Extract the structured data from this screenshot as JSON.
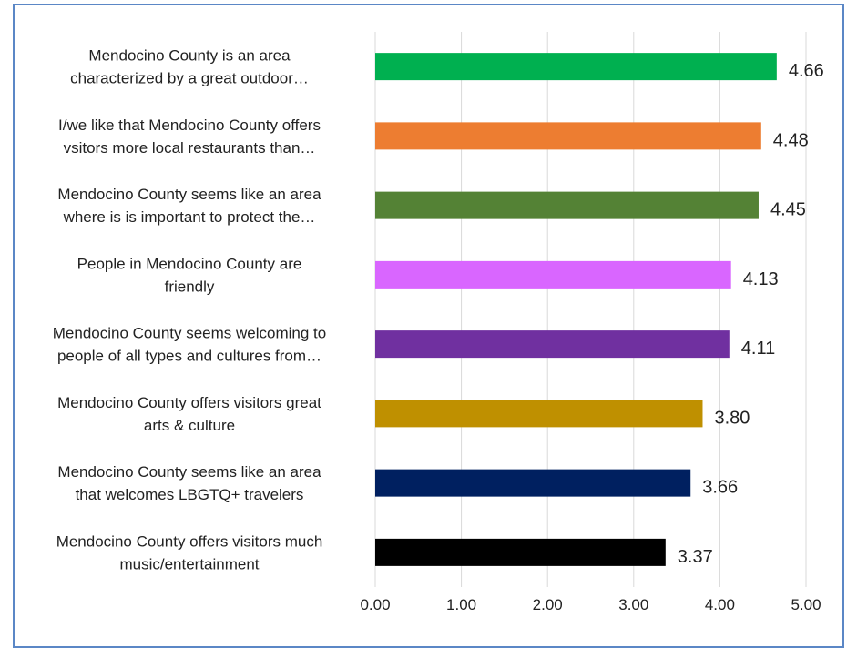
{
  "chart_data": {
    "type": "bar",
    "orientation": "horizontal",
    "title": "",
    "xlabel": "",
    "ylabel": "",
    "xlim": [
      0,
      5
    ],
    "grid": true,
    "legend": "none",
    "x_ticks": [
      "0.00",
      "1.00",
      "2.00",
      "3.00",
      "4.00",
      "5.00"
    ],
    "categories": [
      [
        "Mendocino County is an area",
        "characterized by a great outdoor…"
      ],
      [
        "I/we like that Mendocino County offers",
        "vsitors more local restaurants than…"
      ],
      [
        "Mendocino County seems like an area",
        "where is is important to protect the…"
      ],
      [
        "People in Mendocino County are",
        "friendly"
      ],
      [
        "Mendocino County seems welcoming to",
        "people of all types and cultures from…"
      ],
      [
        "Mendocino County offers visitors great",
        "arts & culture"
      ],
      [
        "Mendocino County seems like an area",
        "that welcomes LBGTQ+ travelers"
      ],
      [
        "Mendocino County offers visitors much",
        "music/entertainment"
      ]
    ],
    "values": [
      4.66,
      4.48,
      4.45,
      4.13,
      4.11,
      3.8,
      3.66,
      3.37
    ],
    "value_labels": [
      "4.66",
      "4.48",
      "4.45",
      "4.13",
      "4.11",
      "3.80",
      "3.66",
      "3.37"
    ],
    "colors": [
      "#00b050",
      "#ed7d31",
      "#548235",
      "#d966ff",
      "#7030a0",
      "#bf9000",
      "#002060",
      "#000000"
    ]
  }
}
